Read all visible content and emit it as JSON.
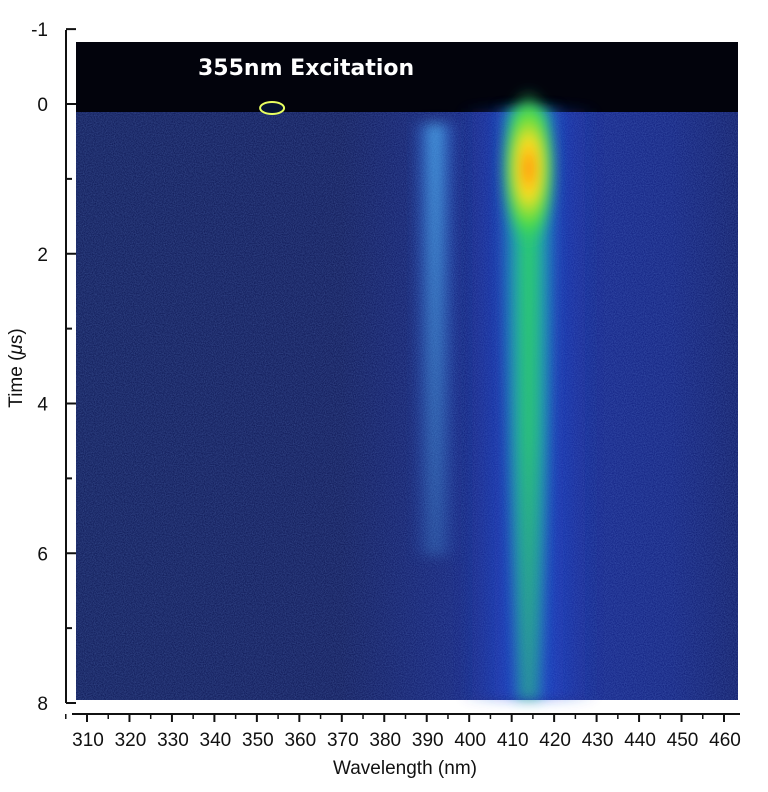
{
  "chart_data": {
    "type": "heatmap",
    "title": "",
    "annotation": "355nm Excitation",
    "xlabel": "Wavelength (nm)",
    "ylabel_prefix": "Time (",
    "ylabel_mu": "μ",
    "ylabel_suffix": "s)",
    "xlim": [
      305,
      462
    ],
    "ylim": [
      -1,
      8
    ],
    "y_inverted": true,
    "x_ticks": [
      310,
      320,
      330,
      340,
      350,
      360,
      370,
      380,
      390,
      400,
      410,
      420,
      430,
      440,
      450,
      460
    ],
    "x_tick_labels": [
      "310",
      "320",
      "330",
      "340",
      "350",
      "360",
      "370",
      "380",
      "390",
      "400",
      "410",
      "420",
      "430",
      "440",
      "450",
      "460"
    ],
    "y_major_ticks": [
      -1,
      0,
      2,
      4,
      6,
      8
    ],
    "y_tick_labels": [
      "-1",
      "0",
      "2",
      "4",
      "6",
      "8"
    ],
    "y_minor_ticks": [
      1,
      3,
      5,
      7
    ],
    "excitation_onset_time_us": 0.0,
    "emission_bands": [
      {
        "center_nm": 414,
        "peak_time_us": 0.3,
        "note": "strong emission band"
      },
      {
        "center_nm": 392,
        "peak_time_us": 0.5,
        "note": "weak emission band"
      }
    ],
    "laser_scatter": {
      "wavelength_nm": 355,
      "time_us": 0.0
    },
    "colormap": [
      "#000010",
      "#0a1a6a",
      "#1030c0",
      "#20a0ff",
      "#30e050",
      "#e0f020",
      "#ff8000"
    ]
  }
}
